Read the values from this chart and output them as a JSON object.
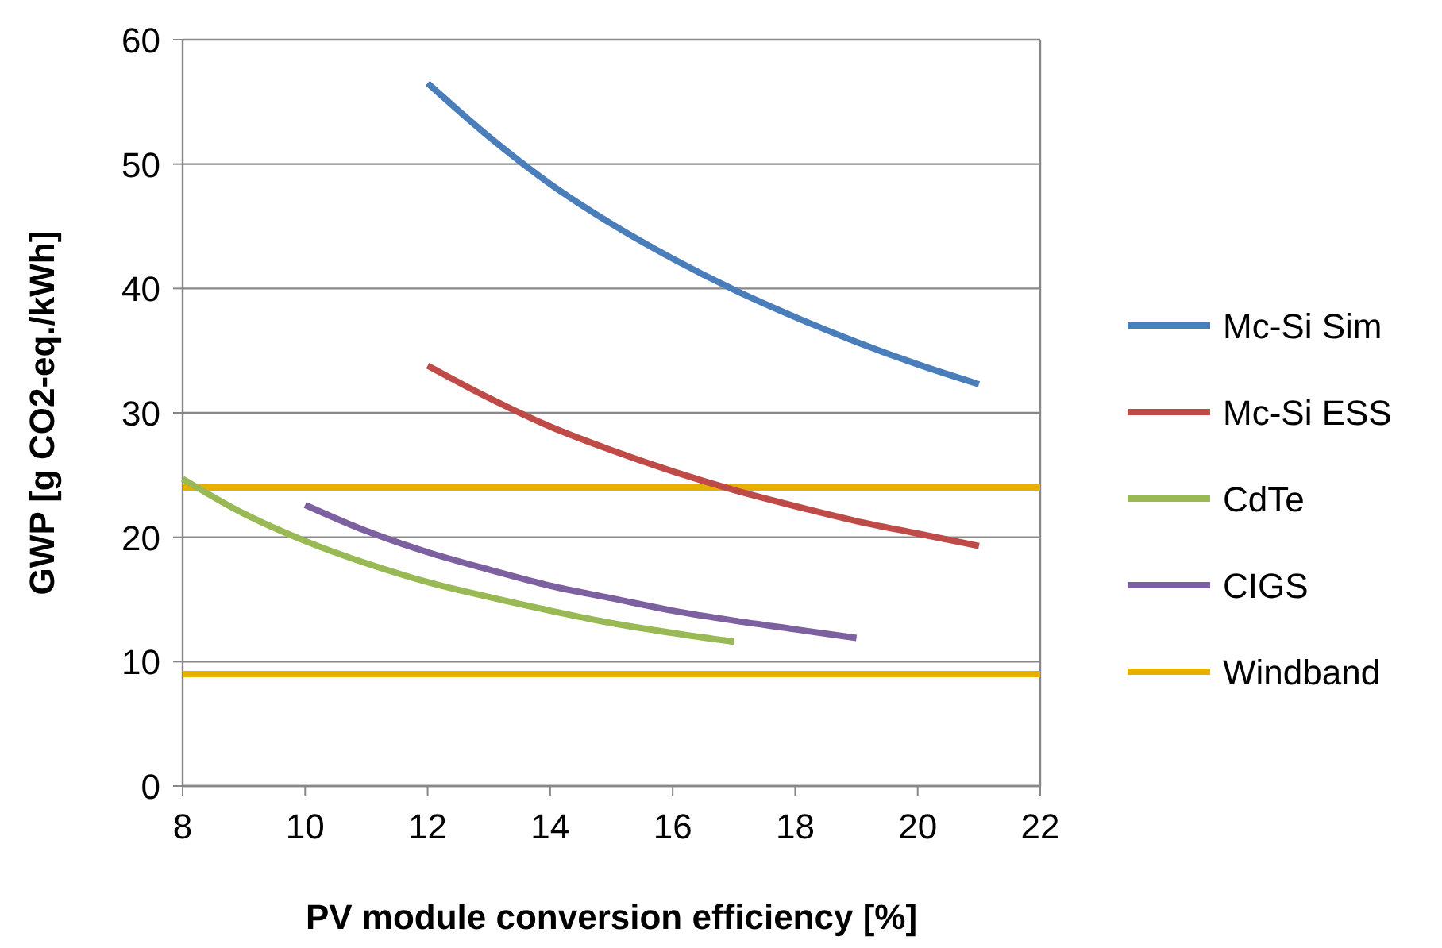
{
  "chart_data": {
    "type": "line",
    "xlabel": "PV module conversion efficiency [%]",
    "ylabel": "GWP [g CO2-eq./kWh]",
    "xlim": [
      8,
      22
    ],
    "xticks": [
      8,
      10,
      12,
      14,
      16,
      18,
      20,
      22
    ],
    "ylim": [
      0,
      60
    ],
    "yticks": [
      0,
      10,
      20,
      30,
      40,
      50,
      60
    ],
    "grid": "y",
    "legend": "right",
    "line_style": "solid",
    "marker": "none",
    "series": [
      {
        "name": "Mc-Si Sim",
        "color": "#4a7ebb",
        "x": [
          12,
          13,
          14,
          15,
          16,
          17,
          18,
          19,
          20,
          21
        ],
        "values": [
          56.5,
          52.2,
          48.4,
          45.2,
          42.4,
          39.9,
          37.7,
          35.7,
          33.9,
          32.3
        ]
      },
      {
        "name": "Mc-Si ESS",
        "color": "#be4b48",
        "x": [
          12,
          13,
          14,
          15,
          16,
          17,
          18,
          19,
          20,
          21
        ],
        "values": [
          33.8,
          31.2,
          28.9,
          27,
          25.3,
          23.8,
          22.5,
          21.3,
          20.3,
          19.3
        ]
      },
      {
        "name": "CdTe",
        "color": "#98b954",
        "x": [
          8,
          9,
          10,
          11,
          12,
          13,
          14,
          15,
          16,
          17
        ],
        "values": [
          24.7,
          21.9,
          19.7,
          17.9,
          16.4,
          15.2,
          14.1,
          13.1,
          12.3,
          11.6
        ]
      },
      {
        "name": "CIGS",
        "color": "#7d60a0",
        "x": [
          10,
          11,
          12,
          13,
          14,
          15,
          16,
          17,
          18,
          19
        ],
        "values": [
          22.6,
          20.5,
          18.8,
          17.4,
          16.1,
          15.1,
          14.1,
          13.3,
          12.6,
          11.9
        ]
      }
    ],
    "ref_lines": [
      {
        "axis": "y",
        "value": 24,
        "label": "Windband",
        "color": "#e6b000"
      },
      {
        "axis": "y",
        "value": 9,
        "color": "#e6b000"
      }
    ]
  }
}
